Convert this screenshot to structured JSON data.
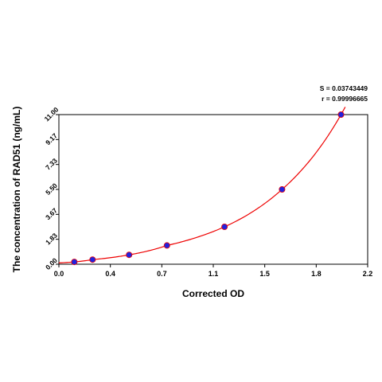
{
  "chart_data": {
    "type": "scatter",
    "title": "",
    "xlabel": "Corrected OD",
    "ylabel": "The concentration of RAD51 (ng/mL)",
    "xlim": [
      0.0,
      2.2
    ],
    "ylim": [
      0.0,
      11.0
    ],
    "x_ticks": [
      "0.0",
      "0.4",
      "0.7",
      "1.1",
      "1.5",
      "1.8",
      "2.2"
    ],
    "y_ticks": [
      "0.00",
      "1.83",
      "3.67",
      "5.50",
      "7.33",
      "9.17",
      "11.00"
    ],
    "stats": [
      "S = 0.03743449",
      "r = 0.99996665"
    ],
    "grid": false,
    "legend": "none",
    "point_color": "#2222dd",
    "curve_color": "#ee0000",
    "points": [
      {
        "x": 0.11,
        "y": 0.17
      },
      {
        "x": 0.24,
        "y": 0.34
      },
      {
        "x": 0.5,
        "y": 0.69
      },
      {
        "x": 0.77,
        "y": 1.38
      },
      {
        "x": 1.18,
        "y": 2.75
      },
      {
        "x": 1.59,
        "y": 5.5
      },
      {
        "x": 2.01,
        "y": 11.0
      }
    ]
  }
}
